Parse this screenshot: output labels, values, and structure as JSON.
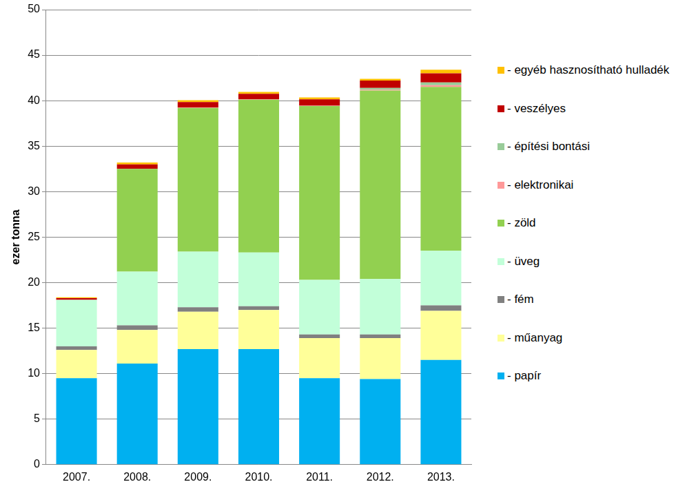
{
  "chart_data": {
    "type": "bar",
    "stacked": true,
    "grid": true,
    "legend": "right",
    "y_label": "ezer tonna",
    "categories": [
      "2007.",
      "2008.",
      "2009.",
      "2010.",
      "2011.",
      "2012.",
      "2013."
    ],
    "ylim": [
      0,
      50
    ],
    "yticks": [
      0,
      5,
      10,
      15,
      20,
      25,
      30,
      35,
      40,
      45,
      50
    ],
    "series": [
      {
        "name": "- papír",
        "color": "#00b0f0",
        "values": [
          9.5,
          11.1,
          12.7,
          12.7,
          9.5,
          9.4,
          11.5
        ]
      },
      {
        "name": "- műanyag",
        "color": "#ffff99",
        "values": [
          3.1,
          3.7,
          4.1,
          4.3,
          4.4,
          4.5,
          5.4
        ]
      },
      {
        "name": "- fém",
        "color": "#808080",
        "values": [
          0.4,
          0.5,
          0.5,
          0.4,
          0.4,
          0.4,
          0.6
        ]
      },
      {
        "name": "- üveg",
        "color": "#c2ffd9",
        "values": [
          5.1,
          5.9,
          6.1,
          5.9,
          6.0,
          6.1,
          6.0
        ]
      },
      {
        "name": "- zöld",
        "color": "#92d050",
        "values": [
          0,
          11.3,
          15.8,
          16.8,
          19.1,
          20.7,
          18.0
        ]
      },
      {
        "name": "- elektronikai",
        "color": "#ff9999",
        "values": [
          0,
          0,
          0.05,
          0.05,
          0.05,
          0.1,
          0.2
        ]
      },
      {
        "name": "- építési bontási",
        "color": "#99cc99",
        "values": [
          0,
          0,
          0,
          0,
          0,
          0.2,
          0.3
        ]
      },
      {
        "name": "- veszélyes",
        "color": "#c00000",
        "values": [
          0.2,
          0.5,
          0.6,
          0.6,
          0.7,
          0.8,
          1.0
        ]
      },
      {
        "name": "- egyéb hasznosítható hulladék",
        "color": "#ffc000",
        "values": [
          0.1,
          0.2,
          0.2,
          0.2,
          0.2,
          0.2,
          0.4
        ]
      }
    ]
  }
}
